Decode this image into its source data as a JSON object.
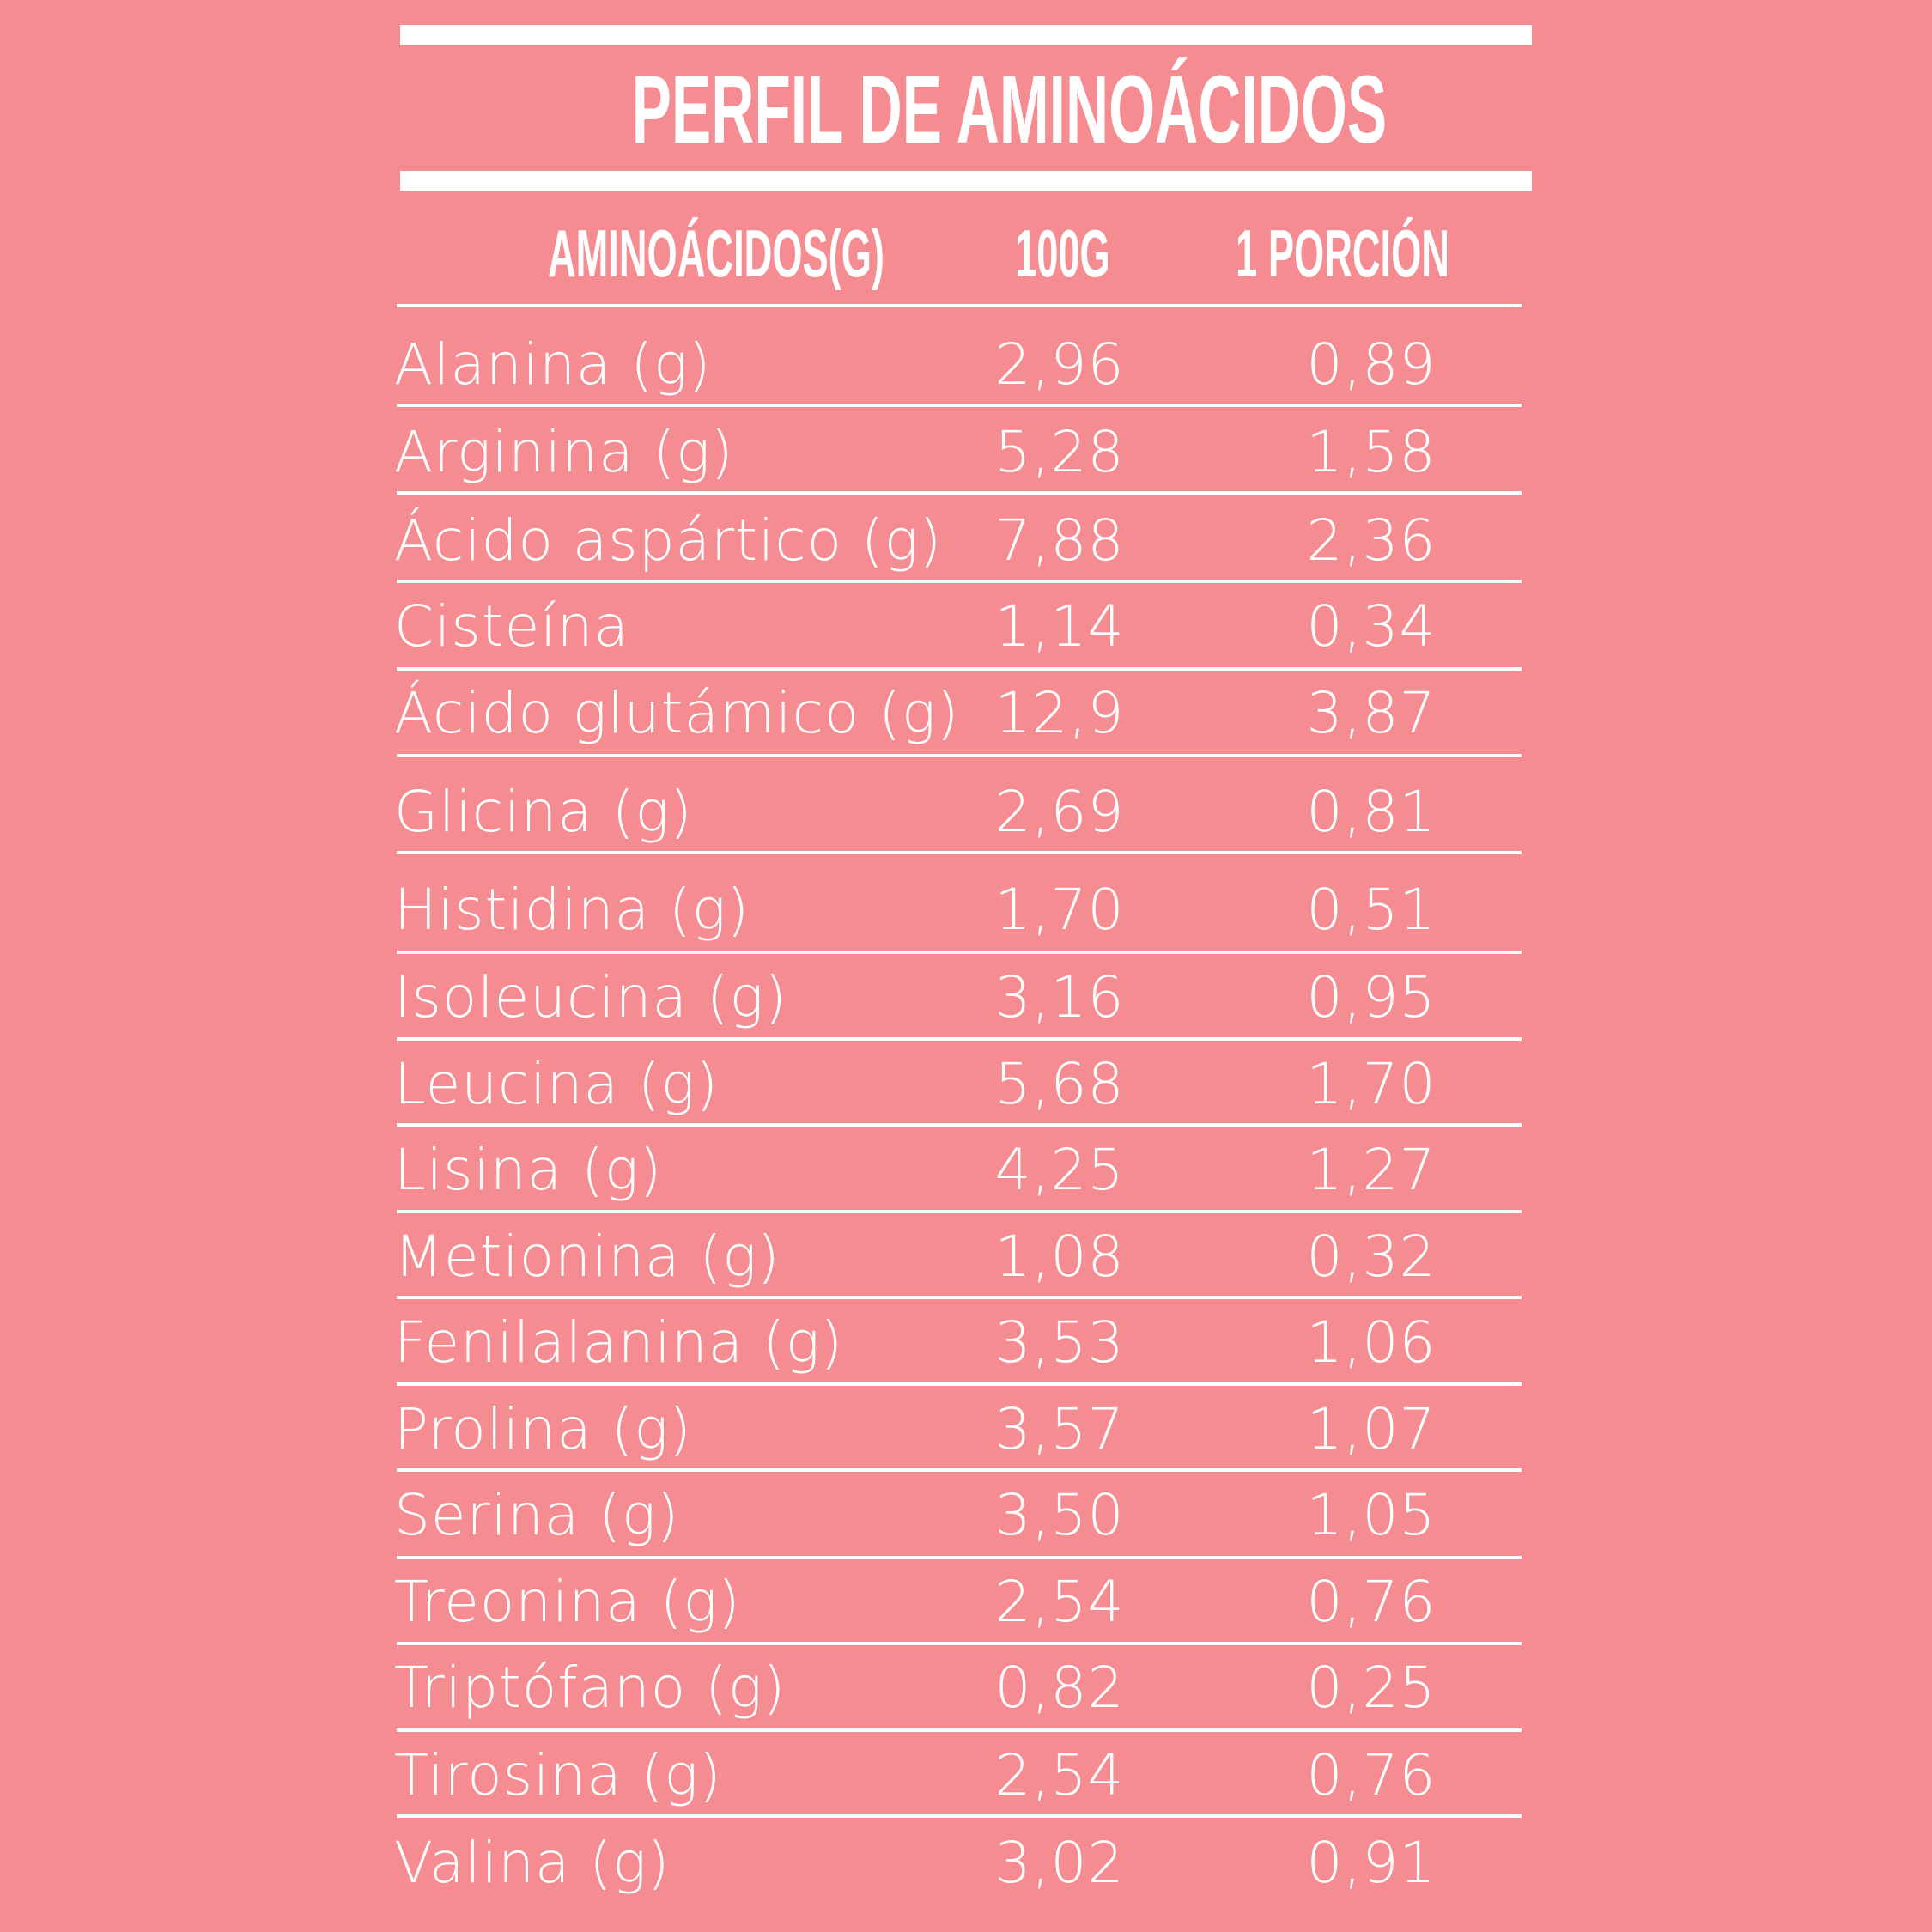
{
  "title": "PERFIL DE AMINOÁCIDOS",
  "headers": [
    "AMINOÁCIDOS(G)",
    "100G",
    "1 PORCIÓN"
  ],
  "colors": {
    "background": "#F58C91",
    "text": "#FFFFFF"
  },
  "rows": [
    {
      "name": "Alanina (g)",
      "per100g": "2,96",
      "portion": "0,89"
    },
    {
      "name": "Arginina (g)",
      "per100g": "5,28",
      "portion": "1,58"
    },
    {
      "name": "Ácido aspártico (g)",
      "per100g": "7,88",
      "portion": "2,36"
    },
    {
      "name": "Cisteína",
      "per100g": "1,14",
      "portion": "0,34"
    },
    {
      "name": "Ácido glutámico (g)",
      "per100g": "12,9",
      "portion": "3,87"
    },
    {
      "name": "Glicina (g)",
      "per100g": "2,69",
      "portion": "0,81"
    },
    {
      "name": "Histidina (g)",
      "per100g": "1,70",
      "portion": "0,51"
    },
    {
      "name": "Isoleucina (g)",
      "per100g": "3,16",
      "portion": "0,95"
    },
    {
      "name": "Leucina (g)",
      "per100g": "5,68",
      "portion": "1,70"
    },
    {
      "name": "Lisina (g)",
      "per100g": "4,25",
      "portion": "1,27"
    },
    {
      "name": "Metionina (g)",
      "per100g": "1,08",
      "portion": "0,32"
    },
    {
      "name": "Fenilalanina (g)",
      "per100g": "3,53",
      "portion": "1,06"
    },
    {
      "name": "Prolina (g)",
      "per100g": "3,57",
      "portion": "1,07"
    },
    {
      "name": "Serina (g)",
      "per100g": "3,50",
      "portion": "1,05"
    },
    {
      "name": "Treonina (g)",
      "per100g": "2,54",
      "portion": "0,76"
    },
    {
      "name": "Triptófano (g)",
      "per100g": "0,82",
      "portion": "0,25"
    },
    {
      "name": "Tirosina (g)",
      "per100g": "2,54",
      "portion": "0,76"
    },
    {
      "name": "Valina (g)",
      "per100g": "3,02",
      "portion": "0,91"
    }
  ]
}
